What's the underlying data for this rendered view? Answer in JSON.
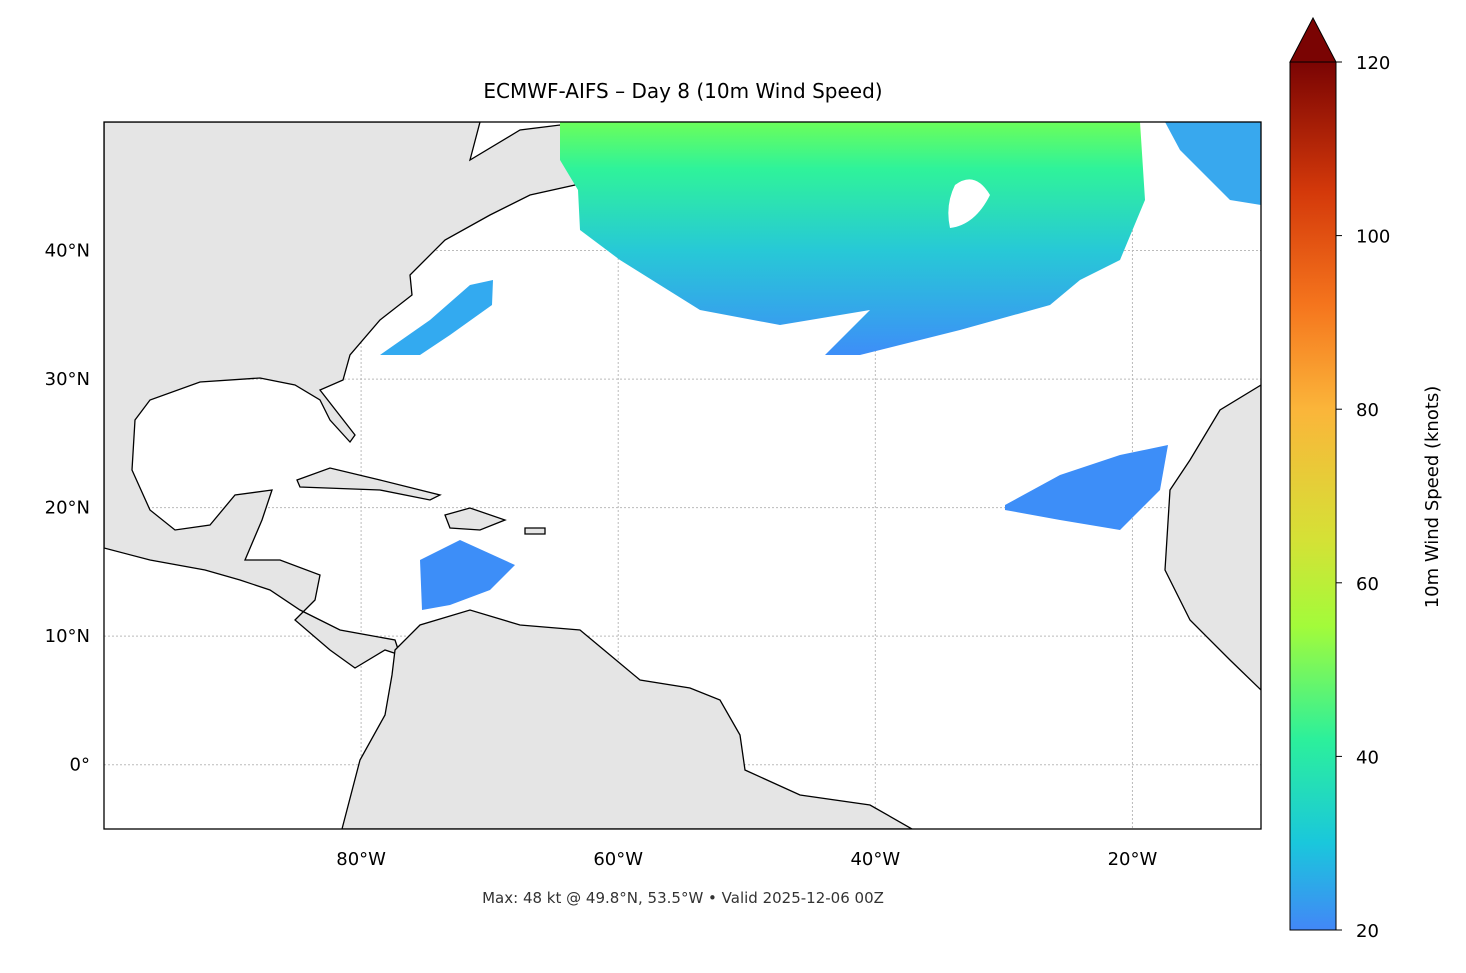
{
  "chart_data": {
    "type": "map",
    "title": "ECMWF-AIFS – Day 8 (10m Wind Speed)",
    "footnote": "Max: 48 kt @ 49.8°N, 53.5°W • Valid 2025-12-06 00Z",
    "xlim": [
      -100,
      -10
    ],
    "ylim": [
      -5,
      50
    ],
    "xticks": [
      {
        "value": -80,
        "label": "80°W"
      },
      {
        "value": -60,
        "label": "60°W"
      },
      {
        "value": -40,
        "label": "40°W"
      },
      {
        "value": -20,
        "label": "20°W"
      }
    ],
    "yticks": [
      {
        "value": 0,
        "label": "0°"
      },
      {
        "value": 10,
        "label": "10°N"
      },
      {
        "value": 20,
        "label": "20°N"
      },
      {
        "value": 30,
        "label": "30°N"
      },
      {
        "value": 40,
        "label": "40°N"
      }
    ],
    "grid": true,
    "colorbar": {
      "label": "10m Wind Speed (knots)",
      "lim": [
        20,
        120
      ],
      "ticks": [
        20,
        40,
        60,
        80,
        100,
        120
      ],
      "extend": "max"
    }
  }
}
